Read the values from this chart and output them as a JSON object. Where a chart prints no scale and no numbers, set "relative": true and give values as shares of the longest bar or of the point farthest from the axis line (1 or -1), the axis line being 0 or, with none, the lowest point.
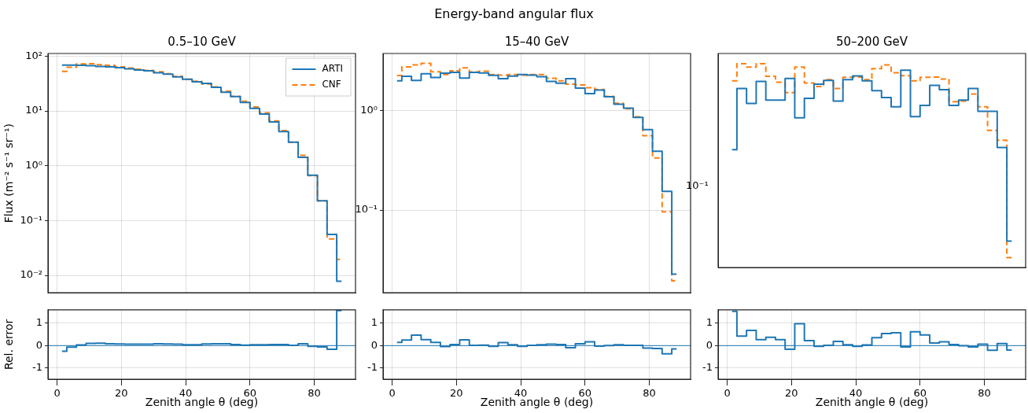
{
  "chart_data": [
    {
      "type": "step",
      "title": "0.5–10 GeV",
      "annotations": [
        "Energy-band angular flux"
      ],
      "ylabel": "Flux (m⁻² s⁻¹ sr⁻¹)",
      "log": true,
      "grid": true,
      "legend": "top right",
      "tick_labels": "y",
      "x": [
        1.5,
        4.5,
        7.5,
        10.5,
        13.5,
        16.5,
        19.5,
        22.5,
        25.5,
        28.5,
        31.5,
        34.5,
        37.5,
        40.5,
        43.5,
        46.5,
        49.5,
        52.5,
        55.5,
        58.5,
        61.5,
        64.5,
        67.5,
        70.5,
        73.5,
        76.5,
        79.5,
        82.5,
        85.5,
        88.5
      ],
      "xlim": [
        -2.85,
        92.85
      ],
      "xticks": [
        0,
        20,
        40,
        60,
        80
      ],
      "ylim": [
        0.0048,
        112
      ],
      "yticks": [
        {
          "value": 0.01,
          "label": "10⁻²"
        },
        {
          "value": 0.1,
          "label": "10⁻¹"
        },
        {
          "value": 1,
          "label": "10⁰"
        },
        {
          "value": 10,
          "label": "10¹"
        },
        {
          "value": 100,
          "label": "10²"
        }
      ],
      "series": [
        {
          "name": "ARTI",
          "color": "#1f77b4",
          "line_style": "solid",
          "values": [
            69,
            69,
            68,
            67,
            65,
            64,
            62,
            59,
            56,
            54,
            50,
            47,
            42,
            38,
            34,
            32,
            27,
            22,
            18.4,
            14.3,
            11.2,
            8.8,
            6.3,
            4.2,
            2.7,
            1.42,
            0.67,
            0.23,
            0.056,
            0.0078
          ]
        },
        {
          "name": "CNF",
          "color": "#ff7f0e",
          "line_style": "dashed",
          "values": [
            53,
            63,
            72,
            73,
            70,
            68,
            64,
            61,
            58,
            55,
            52,
            48,
            43,
            38,
            35,
            31,
            27.5,
            23,
            18.5,
            15,
            11.8,
            9.2,
            6.6,
            4.4,
            2.7,
            1.55,
            0.66,
            0.23,
            0.046,
            0.0196
          ]
        }
      ]
    },
    {
      "type": "step",
      "title": "15–40 GeV",
      "log": true,
      "grid": true,
      "tick_labels": "y",
      "x": [
        1.5,
        4.5,
        7.5,
        10.5,
        13.5,
        16.5,
        19.5,
        22.5,
        25.5,
        28.5,
        31.5,
        34.5,
        37.5,
        40.5,
        43.5,
        46.5,
        49.5,
        52.5,
        55.5,
        58.5,
        61.5,
        64.5,
        67.5,
        70.5,
        73.5,
        76.5,
        79.5,
        82.5,
        85.5,
        88.5
      ],
      "xlim": [
        -2.85,
        92.85
      ],
      "xticks": [
        0,
        20,
        40,
        60,
        80
      ],
      "ylim": [
        0.0148,
        3.72
      ],
      "yticks": [
        {
          "value": 0.1,
          "label": "10⁻¹"
        },
        {
          "value": 1,
          "label": "10⁰"
        }
      ],
      "series": [
        {
          "color": "#1f77b4",
          "line_style": "solid",
          "values": [
            1.98,
            2.2,
            2.0,
            2.33,
            2.14,
            2.36,
            2.41,
            2.11,
            2.4,
            2.37,
            2.25,
            2.08,
            2.21,
            2.29,
            2.26,
            2.18,
            1.95,
            1.87,
            2.08,
            1.67,
            1.47,
            1.6,
            1.37,
            1.15,
            1.05,
            0.85,
            0.64,
            0.39,
            0.154,
            0.0228
          ]
        },
        {
          "color": "#ff7f0e",
          "line_style": "dashed",
          "values": [
            2.24,
            2.73,
            2.86,
            2.96,
            2.44,
            2.29,
            2.5,
            2.67,
            2.43,
            2.47,
            2.29,
            2.26,
            2.29,
            2.26,
            2.29,
            2.29,
            2.1,
            1.98,
            1.83,
            1.8,
            1.69,
            1.62,
            1.38,
            1.18,
            1.04,
            0.86,
            0.557,
            0.334,
            0.096,
            0.0195
          ]
        }
      ]
    },
    {
      "type": "step",
      "title": "50–200 GeV",
      "relative": true,
      "annotations": [
        "10⁻¹"
      ],
      "categories": [
        null,
        null,
        null,
        null,
        null,
        null,
        null,
        null,
        null,
        null,
        null,
        null,
        null,
        null,
        null,
        null,
        null,
        null,
        null,
        null,
        null,
        null,
        null,
        null,
        null,
        null,
        null,
        null,
        null,
        null
      ],
      "series": [
        {
          "color": "#1f77b4",
          "line_style": "solid",
          "values": [
            0.578,
            0.878,
            0.805,
            0.913,
            0.821,
            0.821,
            0.927,
            0.734,
            0.83,
            0.899,
            0.918,
            0.816,
            0.922,
            0.94,
            0.916,
            0.868,
            0.834,
            0.788,
            0.968,
            0.74,
            0.795,
            0.894,
            0.872,
            0.795,
            0.821,
            0.878,
            0.766,
            0.766,
            0.589,
            0.129
          ]
        },
        {
          "color": "#ff7f0e",
          "line_style": "dashed",
          "values": [
            0.916,
            1,
            0.983,
            1,
            0.938,
            0.909,
            0.858,
            0.983,
            0.905,
            0.888,
            0.922,
            0.878,
            0.933,
            0.934,
            0.922,
            0.976,
            0.994,
            0.955,
            0.941,
            0.916,
            0.933,
            0.934,
            0.925,
            0.814,
            0.816,
            0.851,
            0.788,
            0.673,
            0.624,
            0.048
          ]
        }
      ]
    },
    {
      "type": "step",
      "xlabel": "Zenith angle θ (deg)",
      "ylabel": "Rel. error",
      "grid": true,
      "x": [
        1.5,
        4.5,
        7.5,
        10.5,
        13.5,
        16.5,
        19.5,
        22.5,
        25.5,
        28.5,
        31.5,
        34.5,
        37.5,
        40.5,
        43.5,
        46.5,
        49.5,
        52.5,
        55.5,
        58.5,
        61.5,
        64.5,
        67.5,
        70.5,
        73.5,
        76.5,
        79.5,
        82.5,
        85.5,
        88.5
      ],
      "xlim": [
        -2.85,
        92.85
      ],
      "xticks": [
        0,
        20,
        40,
        60,
        80
      ],
      "ylim": [
        -1.5,
        1.6
      ],
      "yticks": [
        -1,
        0,
        1
      ],
      "ref_lines": [
        {
          "axis": "y",
          "value": 0,
          "color": "#1f77b4"
        }
      ],
      "series": [
        {
          "color": "#1f77b4",
          "values": [
            -0.25,
            -0.07,
            0.03,
            0.1,
            0.11,
            0.08,
            0.07,
            0.06,
            0.06,
            0.06,
            0.08,
            0.07,
            0.06,
            0.04,
            0.04,
            0.07,
            0.08,
            0.08,
            0.05,
            0.02,
            0.04,
            0.04,
            0.05,
            0.05,
            0.01,
            0.08,
            -0.03,
            -0.06,
            -0.16,
            1.57
          ]
        }
      ]
    },
    {
      "type": "step",
      "xlabel": "Zenith angle θ (deg)",
      "grid": true,
      "x": [
        1.5,
        4.5,
        7.5,
        10.5,
        13.5,
        16.5,
        19.5,
        22.5,
        25.5,
        28.5,
        31.5,
        34.5,
        37.5,
        40.5,
        43.5,
        46.5,
        49.5,
        52.5,
        55.5,
        58.5,
        61.5,
        64.5,
        67.5,
        70.5,
        73.5,
        76.5,
        79.5,
        82.5,
        85.5,
        88.5
      ],
      "xlim": [
        -2.85,
        92.85
      ],
      "xticks": [
        0,
        20,
        40,
        60,
        80
      ],
      "ylim": [
        -1.5,
        1.6
      ],
      "yticks": [
        -1,
        0,
        1
      ],
      "ref_lines": [
        {
          "axis": "y",
          "value": 0,
          "color": "#1f77b4"
        }
      ],
      "series": [
        {
          "color": "#1f77b4",
          "values": [
            0.14,
            0.25,
            0.47,
            0.27,
            0.14,
            -0.04,
            0.05,
            0.26,
            0.01,
            0.02,
            -0.03,
            0.13,
            0.04,
            -0.03,
            0.01,
            0.04,
            0.06,
            0.05,
            -0.09,
            0.08,
            0.17,
            -0.02,
            0,
            0.04,
            0.01,
            0.01,
            -0.11,
            -0.13,
            -0.37,
            -0.15
          ]
        }
      ]
    },
    {
      "type": "step",
      "xlabel": "Zenith angle θ (deg)",
      "grid": true,
      "x": [
        1.5,
        4.5,
        7.5,
        10.5,
        13.5,
        16.5,
        19.5,
        22.5,
        25.5,
        28.5,
        31.5,
        34.5,
        37.5,
        40.5,
        43.5,
        46.5,
        49.5,
        52.5,
        55.5,
        58.5,
        61.5,
        64.5,
        67.5,
        70.5,
        73.5,
        76.5,
        79.5,
        82.5,
        85.5,
        88.5
      ],
      "xlim": [
        -2.85,
        92.85
      ],
      "xticks": [
        0,
        20,
        40,
        60,
        80
      ],
      "ylim": [
        -1.5,
        1.6
      ],
      "yticks": [
        -1,
        0,
        1
      ],
      "ref_lines": [
        {
          "axis": "y",
          "value": 0,
          "color": "#1f77b4"
        }
      ],
      "series": [
        {
          "color": "#1f77b4",
          "values": [
            1.53,
            0.42,
            0.68,
            0.27,
            0.37,
            0.27,
            -0.16,
            0.98,
            0.22,
            -0.03,
            0.01,
            0.19,
            0.04,
            -0.03,
            0.03,
            0.35,
            0.54,
            0.57,
            -0.06,
            0.62,
            0.48,
            0.12,
            0.17,
            0.05,
            -0.01,
            -0.06,
            0.06,
            -0.21,
            0.09,
            -0.2
          ]
        }
      ]
    }
  ]
}
